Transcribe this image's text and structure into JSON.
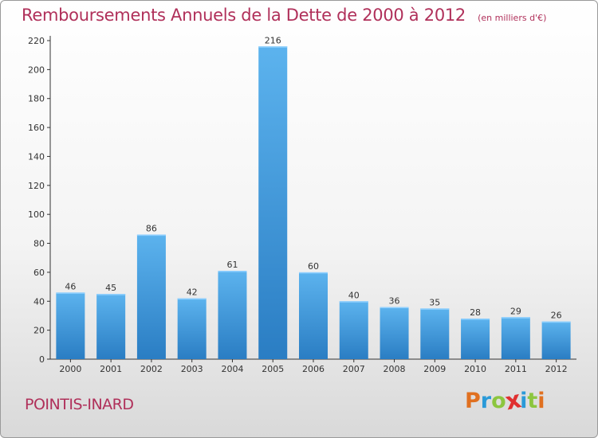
{
  "chart_data": {
    "type": "bar",
    "title": "Remboursements Annuels de la Dette de 2000 à 2012",
    "unit": "(en milliers d'€)",
    "categories": [
      "2000",
      "2001",
      "2002",
      "2003",
      "2004",
      "2005",
      "2006",
      "2007",
      "2008",
      "2009",
      "2010",
      "2011",
      "2012"
    ],
    "values": [
      46,
      45,
      86,
      42,
      61,
      216,
      60,
      40,
      36,
      35,
      28,
      29,
      26
    ],
    "ylim": [
      0,
      220
    ],
    "yticks": [
      0,
      20,
      40,
      60,
      80,
      100,
      120,
      140,
      160,
      180,
      200,
      220
    ],
    "grid": false,
    "bar_color": "#3a93d8",
    "bar_color_light": "#5cb3ee",
    "bar_color_dark": "#2a7dc3"
  },
  "footer": {
    "commune": "POINTIS-INARD"
  },
  "logo": {
    "letters": [
      "P",
      "r",
      "o",
      "x",
      "i",
      "t",
      "i"
    ],
    "colors": [
      "#e07020",
      "#2a9ad8",
      "#8cc63f",
      "#e03030",
      "#2a9ad8",
      "#8cc63f",
      "#e07020"
    ]
  },
  "colors": {
    "title": "#b0305a",
    "axis": "#333333"
  }
}
